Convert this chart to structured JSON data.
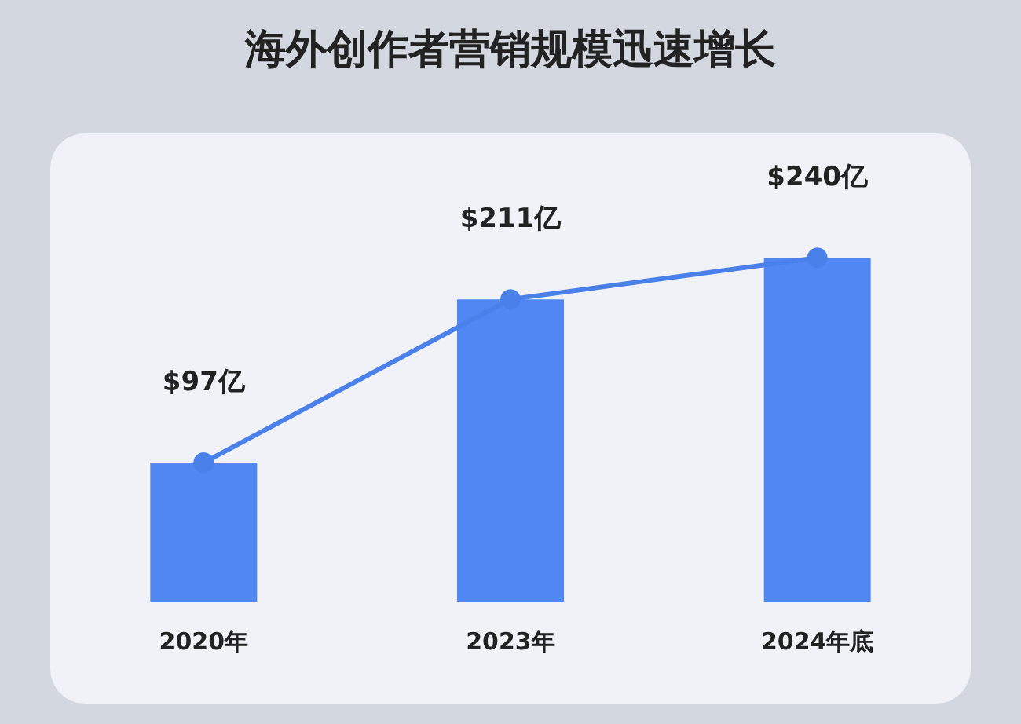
{
  "chart_data": {
    "type": "bar",
    "title": "海外创作者营销规模迅速增长",
    "categories": [
      "2020年",
      "2023年",
      "2024年底"
    ],
    "series": [
      {
        "color": "#5087f2",
        "values": [
          97,
          211,
          240
        ]
      },
      {
        "type": "line",
        "color": "#4a80ea",
        "values": [
          97,
          211,
          240
        ],
        "marker": "circle",
        "value_labels": [
          "$97亿",
          "$211亿",
          "$240亿"
        ]
      }
    ]
  }
}
